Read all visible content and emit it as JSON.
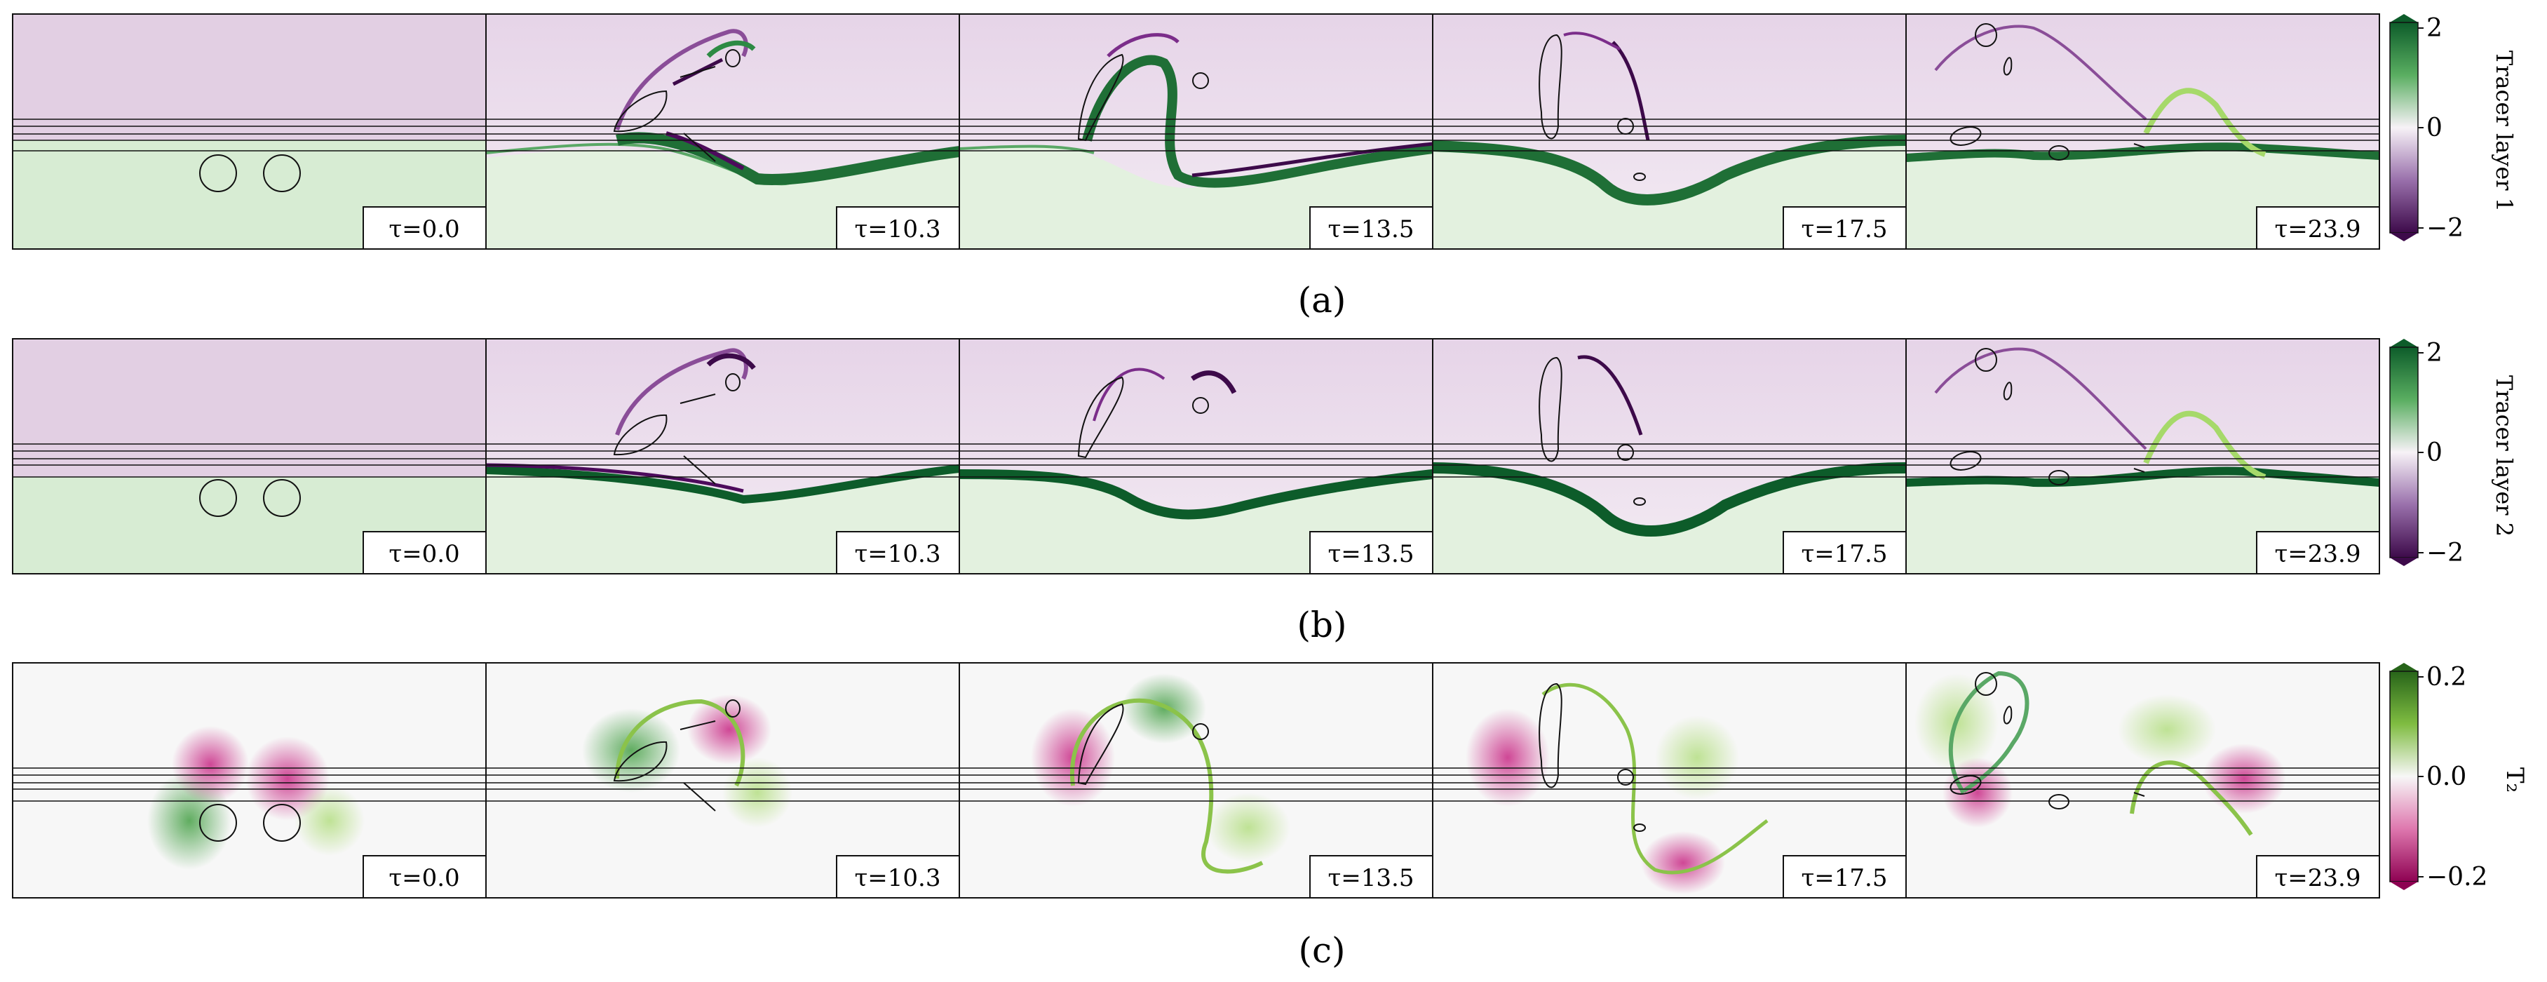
{
  "figure": {
    "rows": [
      {
        "label": "(a)",
        "colorbar": {
          "ticks": [
            "2",
            "0",
            "−2"
          ],
          "title": "Tracer layer 1",
          "colors": [
            "#3d0a4a",
            "#f7f2f7",
            "#0d5c2a"
          ]
        },
        "panels": [
          {
            "time": "τ=0.0"
          },
          {
            "time": "τ=10.3"
          },
          {
            "time": "τ=13.5"
          },
          {
            "time": "τ=17.5"
          },
          {
            "time": "τ=23.9"
          }
        ]
      },
      {
        "label": "(b)",
        "colorbar": {
          "ticks": [
            "2",
            "0",
            "−2"
          ],
          "title": "Tracer layer 2",
          "colors": [
            "#3d0a4a",
            "#f7f2f7",
            "#0d5c2a"
          ]
        },
        "panels": [
          {
            "time": "τ=0.0"
          },
          {
            "time": "τ=10.3"
          },
          {
            "time": "τ=13.5"
          },
          {
            "time": "τ=17.5"
          },
          {
            "time": "τ=23.9"
          }
        ]
      },
      {
        "label": "(c)",
        "colorbar": {
          "ticks": [
            "0.2",
            "0.0",
            "−0.2"
          ],
          "title": "T₂",
          "colors": [
            "#8e0152",
            "#f7f7f7",
            "#276419"
          ]
        },
        "panels": [
          {
            "time": "τ=0.0"
          },
          {
            "time": "τ=10.3"
          },
          {
            "time": "τ=13.5"
          },
          {
            "time": "τ=17.5"
          },
          {
            "time": "τ=23.9"
          }
        ]
      }
    ]
  }
}
